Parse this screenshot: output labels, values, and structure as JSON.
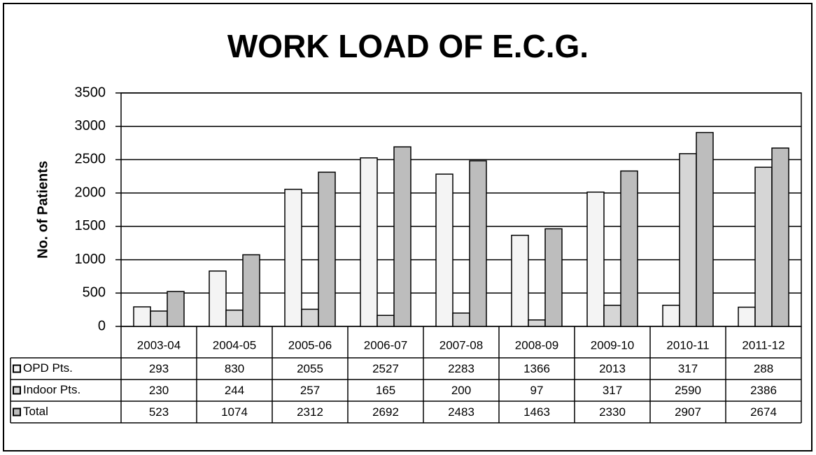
{
  "chart_data": {
    "type": "bar",
    "title": "WORK LOAD OF E.C.G.",
    "y_label": "No. of Patients",
    "categories": [
      "2003-04",
      "2004-05",
      "2005-06",
      "2006-07",
      "2007-08",
      "2008-09",
      "2009-10",
      "2010-11",
      "2011-12"
    ],
    "series": [
      {
        "name": "OPD Pts.",
        "color": "#f4f4f4",
        "values": [
          293,
          830,
          2055,
          2527,
          2283,
          1366,
          2013,
          317,
          288
        ]
      },
      {
        "name": "Indoor Pts.",
        "color": "#d6d6d6",
        "values": [
          230,
          244,
          257,
          165,
          200,
          97,
          317,
          2590,
          2386
        ]
      },
      {
        "name": "Total",
        "color": "#bdbdbd",
        "values": [
          523,
          1074,
          2312,
          2692,
          2483,
          1463,
          2330,
          2907,
          2674
        ]
      }
    ],
    "ylim": [
      0,
      3500
    ],
    "yticks": [
      0,
      500,
      1000,
      1500,
      2000,
      2500,
      3000,
      3500
    ],
    "grid": true,
    "data_table": true
  }
}
